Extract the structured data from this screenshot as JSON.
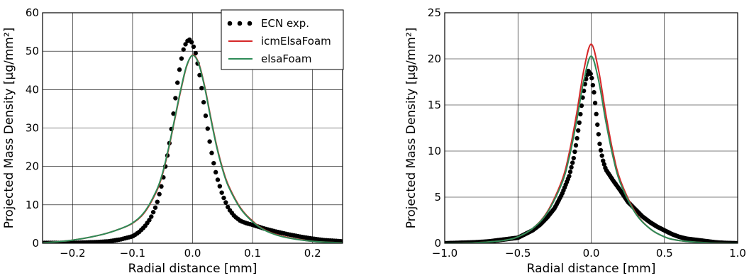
{
  "chart_data": [
    {
      "type": "line",
      "title": "",
      "xlabel": "Radial distance [mm]",
      "ylabel": "Projected Mass Density [μg/mm²]",
      "xlim": [
        -0.25,
        0.25
      ],
      "ylim": [
        0,
        60
      ],
      "xticks": [
        -0.2,
        -0.1,
        0.0,
        0.1,
        0.2
      ],
      "xtick_labels": [
        "−0.2",
        "−0.1",
        "0.0",
        "0.1",
        "0.2"
      ],
      "yticks": [
        0,
        10,
        20,
        30,
        40,
        50,
        60
      ],
      "ytick_labels": [
        "0",
        "10",
        "20",
        "30",
        "40",
        "50",
        "60"
      ],
      "grid": true,
      "legend_position": "top-right",
      "series": [
        {
          "name": "ECN exp.",
          "style": "dots",
          "color": "#000000",
          "x": [
            -0.25,
            -0.2,
            -0.16,
            -0.14,
            -0.12,
            -0.1,
            -0.09,
            -0.08,
            -0.07,
            -0.06,
            -0.05,
            -0.04,
            -0.035,
            -0.03,
            -0.025,
            -0.02,
            -0.015,
            -0.01,
            -0.005,
            0.0,
            0.005,
            0.01,
            0.015,
            0.02,
            0.025,
            0.03,
            0.035,
            0.04,
            0.05,
            0.06,
            0.07,
            0.08,
            0.09,
            0.1,
            0.12,
            0.14,
            0.16,
            0.18,
            0.2,
            0.22,
            0.25
          ],
          "y": [
            0.1,
            0.1,
            0.3,
            0.5,
            1.0,
            1.8,
            2.8,
            4.3,
            6.5,
            10.0,
            16.0,
            24.5,
            30.0,
            36.0,
            42.0,
            47.0,
            50.5,
            52.5,
            53.0,
            52.0,
            49.5,
            45.5,
            40.5,
            35.0,
            30.0,
            25.0,
            21.0,
            17.5,
            12.5,
            9.0,
            7.0,
            5.8,
            5.2,
            4.8,
            3.8,
            3.0,
            2.3,
            1.7,
            1.2,
            0.8,
            0.5
          ]
        },
        {
          "name": "icmElsaFoam",
          "style": "line",
          "color": "#d62728",
          "x": [
            -0.25,
            -0.2,
            -0.15,
            -0.12,
            -0.1,
            -0.08,
            -0.06,
            -0.05,
            -0.04,
            -0.03,
            -0.02,
            -0.01,
            0.0,
            0.01,
            0.02,
            0.03,
            0.04,
            0.05,
            0.06,
            0.08,
            0.1,
            0.12,
            0.15,
            0.2,
            0.25
          ],
          "y": [
            0.1,
            0.8,
            2.3,
            3.8,
            5.2,
            8.0,
            13.5,
            18.0,
            24.5,
            32.0,
            39.5,
            46.0,
            49.0,
            47.0,
            41.0,
            33.0,
            25.5,
            19.5,
            15.0,
            9.2,
            5.8,
            3.5,
            1.8,
            0.5,
            0.1
          ]
        },
        {
          "name": "elsaFoam",
          "style": "line",
          "color": "#2e8b57",
          "x": [
            -0.25,
            -0.2,
            -0.15,
            -0.12,
            -0.1,
            -0.08,
            -0.06,
            -0.05,
            -0.04,
            -0.03,
            -0.02,
            -0.01,
            0.0,
            0.01,
            0.02,
            0.03,
            0.04,
            0.05,
            0.06,
            0.08,
            0.1,
            0.12,
            0.15,
            0.2,
            0.25
          ],
          "y": [
            0.1,
            0.8,
            2.3,
            3.8,
            5.3,
            8.2,
            13.8,
            18.3,
            24.8,
            32.3,
            39.8,
            46.2,
            48.9,
            46.8,
            40.7,
            32.7,
            25.2,
            19.2,
            14.7,
            9.0,
            5.6,
            3.4,
            1.7,
            0.5,
            0.1
          ]
        }
      ]
    },
    {
      "type": "line",
      "title": "",
      "xlabel": "Radial distance [mm]",
      "ylabel": "Projected Mass Density [μg/mm²]",
      "xlim": [
        -1.0,
        1.0
      ],
      "ylim": [
        0,
        25
      ],
      "xticks": [
        -1.0,
        -0.5,
        0.0,
        0.5,
        1.0
      ],
      "xtick_labels": [
        "−1.0",
        "−0.5",
        "0.0",
        "0.5",
        "1.0"
      ],
      "yticks": [
        0,
        5,
        10,
        15,
        20,
        25
      ],
      "ytick_labels": [
        "0",
        "5",
        "10",
        "15",
        "20",
        "25"
      ],
      "grid": true,
      "series": [
        {
          "name": "ECN exp.",
          "style": "dots",
          "color": "#000000",
          "x": [
            -1.0,
            -0.9,
            -0.8,
            -0.7,
            -0.6,
            -0.5,
            -0.45,
            -0.4,
            -0.35,
            -0.3,
            -0.25,
            -0.2,
            -0.15,
            -0.12,
            -0.1,
            -0.08,
            -0.06,
            -0.04,
            -0.02,
            0.0,
            0.02,
            0.04,
            0.06,
            0.08,
            0.1,
            0.15,
            0.2,
            0.25,
            0.3,
            0.35,
            0.4,
            0.45,
            0.5,
            0.55,
            0.6,
            0.65,
            0.7,
            0.75,
            0.8,
            0.85,
            0.9,
            0.95,
            1.0
          ],
          "y": [
            0.0,
            0.05,
            0.1,
            0.2,
            0.4,
            0.6,
            1.0,
            1.4,
            2.0,
            2.8,
            3.8,
            5.3,
            7.3,
            9.2,
            11.0,
            13.2,
            15.6,
            17.5,
            18.7,
            18.3,
            16.3,
            13.2,
            10.5,
            9.0,
            8.0,
            6.8,
            5.7,
            4.5,
            3.7,
            2.9,
            2.3,
            1.8,
            1.4,
            1.0,
            0.7,
            0.5,
            0.4,
            0.3,
            0.2,
            0.1,
            0.05,
            0.02,
            0.0
          ]
        },
        {
          "name": "icmElsaFoam",
          "style": "line",
          "color": "#d62728",
          "x": [
            -1.0,
            -0.8,
            -0.6,
            -0.5,
            -0.4,
            -0.3,
            -0.2,
            -0.15,
            -0.1,
            -0.05,
            0.0,
            0.05,
            0.1,
            0.15,
            0.2,
            0.3,
            0.4,
            0.5,
            0.6,
            0.8,
            1.0
          ],
          "y": [
            0.0,
            0.05,
            0.3,
            0.7,
            1.6,
            3.4,
            6.8,
            9.8,
            14.0,
            18.8,
            21.6,
            18.8,
            14.0,
            9.8,
            6.8,
            3.4,
            1.6,
            0.7,
            0.3,
            0.05,
            0.0
          ]
        },
        {
          "name": "elsaFoam",
          "style": "line",
          "color": "#2e8b57",
          "x": [
            -1.0,
            -0.8,
            -0.6,
            -0.5,
            -0.4,
            -0.3,
            -0.2,
            -0.15,
            -0.1,
            -0.05,
            0.0,
            0.05,
            0.1,
            0.15,
            0.2,
            0.3,
            0.4,
            0.5,
            0.6,
            0.8,
            1.0
          ],
          "y": [
            0.0,
            0.05,
            0.3,
            0.7,
            1.6,
            3.3,
            6.5,
            9.3,
            13.2,
            17.7,
            20.3,
            17.7,
            13.2,
            9.3,
            6.5,
            3.3,
            1.6,
            0.7,
            0.3,
            0.05,
            0.0
          ]
        }
      ]
    }
  ],
  "legend": {
    "entries": [
      {
        "label": "ECN exp.",
        "marker": "dots",
        "color": "#000000"
      },
      {
        "label": "icmElsaFoam",
        "marker": "line",
        "color": "#d62728"
      },
      {
        "label": "elsaFoam",
        "marker": "line",
        "color": "#2e8b57"
      }
    ]
  }
}
